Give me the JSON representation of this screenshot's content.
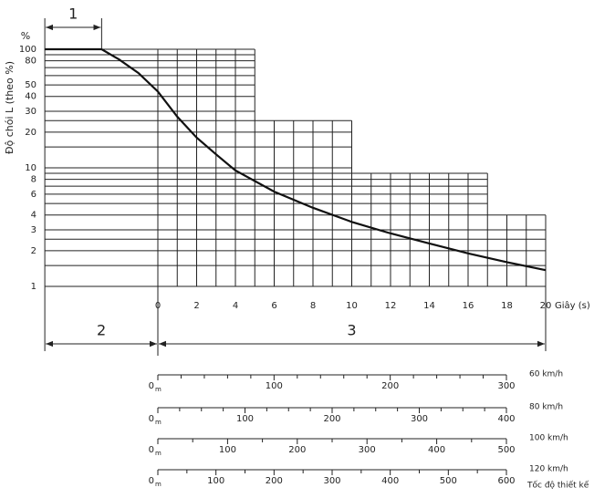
{
  "chart_data": {
    "type": "line",
    "y_unit": "%",
    "y_label": "Độ chói L (theo %)",
    "x_label": "Giây (s)",
    "log_y": true,
    "xlim": [
      -5.83,
      20
    ],
    "ylim": [
      1,
      100
    ],
    "xticks": [
      0,
      2,
      4,
      6,
      8,
      10,
      12,
      14,
      16,
      18,
      20
    ],
    "minor_xticks": [
      1,
      3,
      5,
      7,
      9,
      11,
      13,
      15,
      17,
      19
    ],
    "yticks": [
      1,
      2,
      3,
      4,
      6,
      8,
      10,
      20,
      30,
      40,
      50,
      80,
      100
    ],
    "minor_yticks": [
      1.5,
      2.5,
      5,
      7,
      9,
      15,
      25,
      60,
      70,
      90
    ],
    "grid_steps": [
      {
        "x_end": 5,
        "y_max": 100
      },
      {
        "x_end": 10,
        "y_max": 25
      },
      {
        "x_end": 17,
        "y_max": 9
      },
      {
        "x_end": 20,
        "y_max": 4
      }
    ],
    "series": [
      {
        "color": "#111",
        "x": [
          -5.83,
          -2.9,
          -2,
          -1,
          0,
          1,
          2,
          3,
          4,
          6,
          8,
          10,
          12,
          14,
          16,
          18,
          20
        ],
        "values": [
          100,
          100,
          82,
          63,
          44,
          27,
          18,
          13,
          9.5,
          6.3,
          4.6,
          3.5,
          2.8,
          2.3,
          1.9,
          1.6,
          1.37
        ]
      }
    ],
    "spans": [
      {
        "label": "1",
        "x": [
          -5.83,
          -2.9
        ]
      },
      {
        "label": "2",
        "x": [
          -5.83,
          0
        ]
      },
      {
        "label": "3",
        "x": [
          0,
          20
        ]
      }
    ]
  },
  "distance_scales": {
    "note": "Tốc độ thiết kế",
    "unit": "m",
    "scales": [
      {
        "speed": "60 km/h",
        "lim": [
          0,
          300
        ],
        "ticks": [
          0,
          100,
          200,
          300
        ],
        "minor_ticks": [
          20,
          40,
          60,
          80,
          120,
          140,
          160,
          180,
          220,
          240,
          260,
          280
        ]
      },
      {
        "speed": "80 km/h",
        "lim": [
          0,
          400
        ],
        "ticks": [
          0,
          100,
          200,
          300,
          400
        ],
        "minor_ticks": [
          25,
          50,
          75,
          125,
          150,
          175,
          225,
          250,
          275,
          325,
          350,
          375
        ]
      },
      {
        "speed": "100 km/h",
        "lim": [
          0,
          500
        ],
        "ticks": [
          0,
          100,
          200,
          300,
          400,
          500
        ],
        "minor_ticks": [
          50,
          150,
          250,
          350,
          450
        ]
      },
      {
        "speed": "120 km/h",
        "lim": [
          0,
          600
        ],
        "ticks": [
          0,
          100,
          200,
          300,
          400,
          500,
          600
        ],
        "minor_ticks": [
          50,
          150,
          250,
          350,
          450,
          550
        ]
      }
    ]
  }
}
